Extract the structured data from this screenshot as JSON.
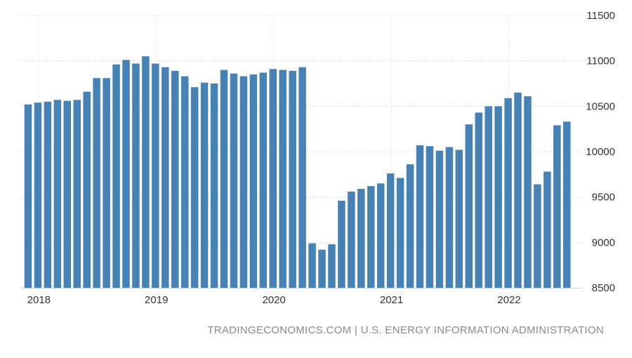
{
  "chart_data": {
    "type": "bar",
    "title": "",
    "xlabel": "",
    "ylabel": "",
    "series_color": "#4682b4",
    "grid": true,
    "grid_style": "dotted",
    "y_axis_side": "right",
    "ylim": [
      8500,
      11500
    ],
    "yticks": [
      "11500",
      "11000",
      "10500",
      "10000",
      "9500",
      "9000",
      "8500"
    ],
    "ytick_values": [
      11500,
      11000,
      10500,
      10000,
      9500,
      9000,
      8500
    ],
    "xticks": [
      "2018",
      "2019",
      "2020",
      "2021",
      "2022"
    ],
    "xtick_category_index": [
      0,
      12,
      24,
      36,
      48
    ],
    "categories": [
      "2018-01",
      "2018-02",
      "2018-03",
      "2018-04",
      "2018-05",
      "2018-06",
      "2018-07",
      "2018-08",
      "2018-09",
      "2018-10",
      "2018-11",
      "2018-12",
      "2019-01",
      "2019-02",
      "2019-03",
      "2019-04",
      "2019-05",
      "2019-06",
      "2019-07",
      "2019-08",
      "2019-09",
      "2019-10",
      "2019-11",
      "2019-12",
      "2020-01",
      "2020-02",
      "2020-03",
      "2020-04",
      "2020-05",
      "2020-06",
      "2020-07",
      "2020-08",
      "2020-09",
      "2020-10",
      "2020-11",
      "2020-12",
      "2021-01",
      "2021-02",
      "2021-03",
      "2021-04",
      "2021-05",
      "2021-06",
      "2021-07",
      "2021-08",
      "2021-09",
      "2021-10",
      "2021-11",
      "2021-12",
      "2022-01",
      "2022-02",
      "2022-03",
      "2022-04",
      "2022-05",
      "2022-06",
      "2022-07",
      "2022-08"
    ],
    "values": [
      10520,
      10540,
      10550,
      10570,
      10560,
      10570,
      10660,
      10810,
      10810,
      10960,
      11010,
      10970,
      11050,
      10970,
      10930,
      10890,
      10830,
      10710,
      10760,
      10750,
      10900,
      10860,
      10830,
      10850,
      10870,
      10910,
      10900,
      10890,
      10930,
      8990,
      8920,
      8980,
      9460,
      9560,
      9590,
      9620,
      9650,
      9760,
      9710,
      9860,
      10070,
      10060,
      10010,
      10050,
      10020,
      10300,
      10430,
      10500,
      10500,
      10590,
      10650,
      10610,
      9640,
      9780,
      10290,
      10330
    ]
  },
  "source_text": "TRADINGECONOMICS.COM | U.S. ENERGY INFORMATION ADMINISTRATION"
}
